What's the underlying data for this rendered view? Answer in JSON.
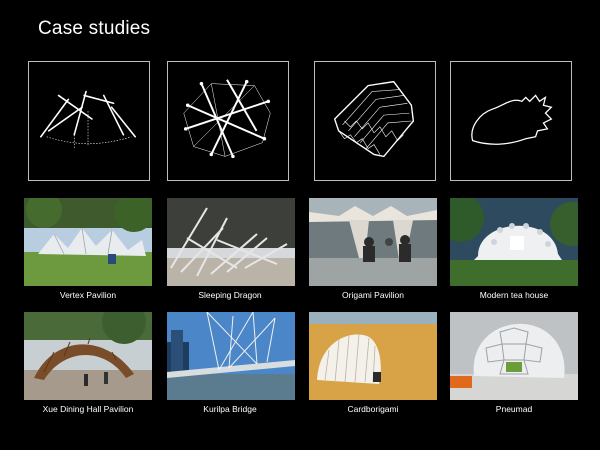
{
  "slide": {
    "title": "Case studies"
  },
  "case_studies": [
    {
      "caption": "Vertex Pavilion",
      "diagram_icon": "reciprocal-frame-arch-diagram",
      "photo_icon": "vertex-pavilion-photo"
    },
    {
      "caption": "Sleeping Dragon",
      "diagram_icon": "reciprocal-sticks-diagram",
      "photo_icon": "sleeping-dragon-photo"
    },
    {
      "caption": "Origami Pavilion",
      "diagram_icon": "folded-vault-diagram",
      "photo_icon": "origami-pavilion-photo"
    },
    {
      "caption": "Modern tea house",
      "diagram_icon": "inflatable-outline-diagram",
      "photo_icon": "modern-tea-house-photo"
    },
    {
      "caption": "Xue Dining Hall Pavilion",
      "photo_icon": "xue-dining-hall-photo"
    },
    {
      "caption": "Kurilpa Bridge",
      "photo_icon": "kurilpa-bridge-photo"
    },
    {
      "caption": "Cardborigami",
      "photo_icon": "cardborigami-photo"
    },
    {
      "caption": "Pneumad",
      "photo_icon": "pneumad-photo"
    }
  ]
}
